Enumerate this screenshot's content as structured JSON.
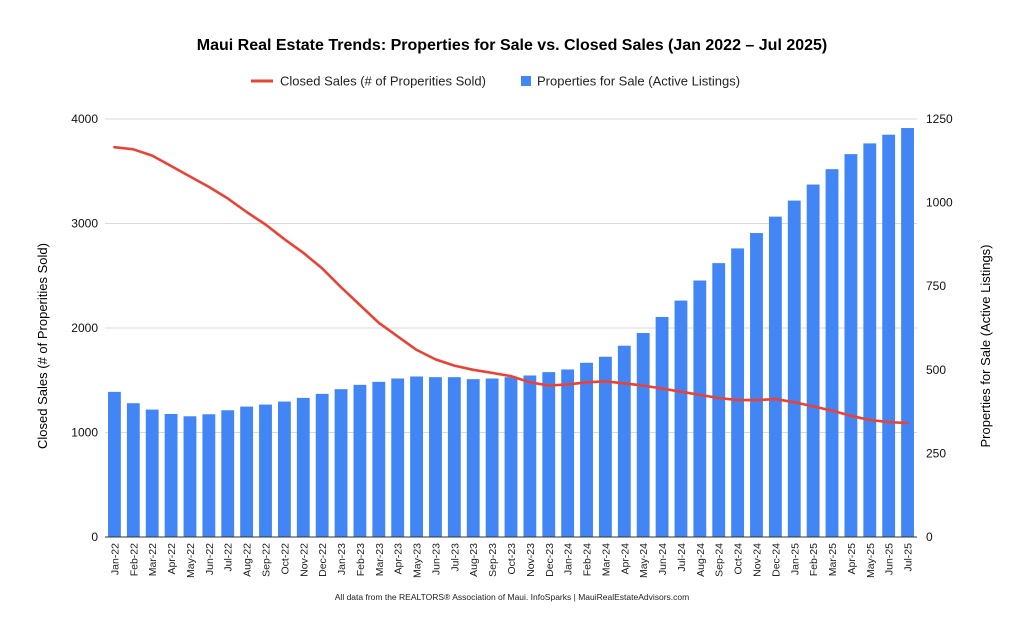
{
  "chart_data": {
    "type": "bar",
    "title": "Maui Real Estate Trends: Properties for Sale vs. Closed Sales (Jan 2022 – Jul 2025)",
    "categories": [
      "Jan-22",
      "Feb-22",
      "Mar-22",
      "Apr-22",
      "May-22",
      "Jun-22",
      "Jul-22",
      "Aug-22",
      "Sep-22",
      "Oct-22",
      "Nov-22",
      "Dec-22",
      "Jan-23",
      "Feb-23",
      "Mar-23",
      "Apr-23",
      "May-23",
      "Jun-23",
      "Jul-23",
      "Aug-23",
      "Sep-23",
      "Oct-23",
      "Nov-23",
      "Dec-23",
      "Jan-24",
      "Feb-24",
      "Mar-24",
      "Apr-24",
      "May-24",
      "Jun-24",
      "Jul-24",
      "Aug-24",
      "Sep-24",
      "Oct-24",
      "Nov-24",
      "Dec-24",
      "Jan-25",
      "Feb-25",
      "Mar-25",
      "Apr-25",
      "May-25",
      "Jun-25",
      "Jul-25"
    ],
    "series": [
      {
        "name": "Properties for Sale (Active Listings)",
        "type": "bar",
        "axis": "right",
        "color": "#4285f4",
        "values": [
          434,
          400,
          381,
          368,
          361,
          367,
          379,
          390,
          396,
          405,
          416,
          428,
          442,
          455,
          464,
          474,
          480,
          478,
          478,
          472,
          474,
          478,
          483,
          493,
          501,
          521,
          539,
          572,
          610,
          658,
          707,
          767,
          819,
          863,
          909,
          958,
          1006,
          1054,
          1100,
          1145,
          1177,
          1203,
          1223
        ]
      },
      {
        "name": "Closed Sales (# of Properities Sold)",
        "type": "line",
        "axis": "left",
        "color": "#ea4335",
        "values": [
          3730,
          3710,
          3650,
          3550,
          3450,
          3350,
          3240,
          3110,
          2990,
          2850,
          2720,
          2570,
          2390,
          2220,
          2050,
          1920,
          1790,
          1700,
          1640,
          1600,
          1570,
          1540,
          1480,
          1450,
          1460,
          1480,
          1490,
          1470,
          1450,
          1420,
          1390,
          1360,
          1330,
          1310,
          1310,
          1320,
          1290,
          1250,
          1210,
          1160,
          1120,
          1100,
          1090
        ]
      }
    ],
    "ylabel": "Closed Sales (# of Properities Sold)",
    "y2label": "Properties for Sale (Active Listings)",
    "ylim": [
      0,
      4000
    ],
    "y2lim": [
      0,
      1250
    ],
    "yticks": [
      0,
      1000,
      2000,
      3000,
      4000
    ],
    "y2ticks": [
      0,
      250,
      500,
      750,
      1000,
      1250
    ],
    "grid": true,
    "legend_position": "top-center",
    "source_note": "All data from the REALTORS® Association of Maui. InfoSparks | MauiRealEstateAdvisors.com"
  }
}
